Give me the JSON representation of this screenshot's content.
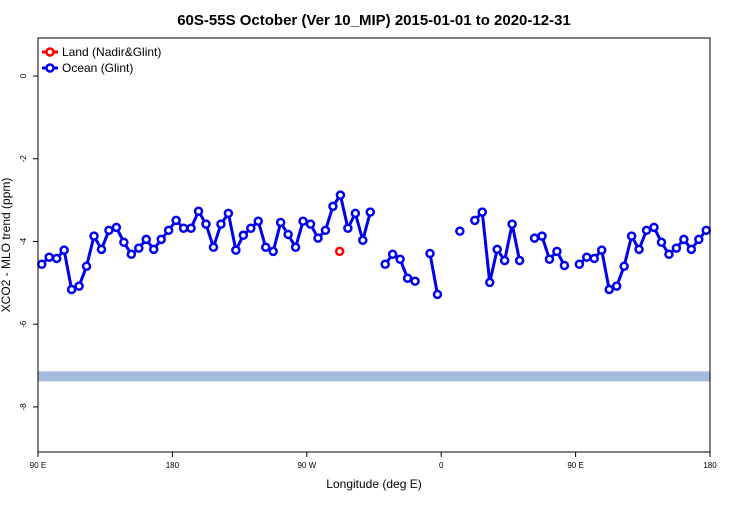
{
  "chart_data": {
    "type": "line",
    "title": "60S-55S October (Ver 10_MIP)   2015-01-01 to 2020-12-31",
    "xlabel": "Longitude (deg E)",
    "ylabel": "XCO2 - MLO trend (ppm)",
    "xlim": [
      90,
      540
    ],
    "ylim": [
      -9.09,
      0.92
    ],
    "xticks": [
      {
        "value": 90,
        "label": "90 E"
      },
      180,
      {
        "value": 270,
        "label": "90 W"
      },
      {
        "value": 360,
        "label": "0"
      },
      {
        "value": 450,
        "label": "90 E"
      },
      {
        "value": 540,
        "label": "180"
      }
    ],
    "yticks": [
      0,
      -2,
      -4,
      -6,
      -8
    ],
    "legend": "top-left",
    "reference_band": {
      "value": -7.26,
      "color": "#a6bcdf"
    },
    "series": [
      {
        "name": "Land (Nadir&Glint)",
        "color": "#ff0000",
        "x": [
          292
        ],
        "values": [
          -4.24
        ]
      },
      {
        "name": "Ocean (Glint)",
        "color": "#0000ee",
        "x": [
          92.5,
          97.5,
          102.5,
          107.5,
          112.5,
          117.5,
          122.5,
          127.5,
          132.5,
          137.5,
          142.5,
          147.5,
          152.5,
          157.5,
          162.5,
          167.5,
          172.5,
          177.5,
          182.5,
          187.5,
          192.5,
          197.5,
          202.5,
          207.5,
          212.5,
          217.5,
          222.5,
          227.5,
          232.5,
          237.5,
          242.5,
          247.5,
          252.5,
          257.5,
          262.5,
          267.5,
          272.5,
          277.5,
          282.5,
          287.5,
          292.5,
          297.5,
          302.5,
          307.5,
          312.5,
          317.5,
          322.5,
          327.5,
          332.5,
          337.5,
          342.5,
          347.5,
          352.5,
          357.5,
          362.5,
          367.5,
          372.5,
          377.5,
          382.5,
          387.5,
          392.5,
          397.5,
          402.5,
          407.5,
          412.5,
          417.5,
          422.5,
          427.5,
          432.5,
          437.5,
          442.5,
          447.5,
          452.5,
          457.5,
          462.5,
          467.5,
          472.5,
          477.5,
          482.5,
          487.5,
          492.5,
          497.5,
          502.5,
          507.5,
          512.5,
          517.5,
          522.5,
          527.5,
          532.5,
          537.5
        ],
        "values": [
          -4.55,
          -4.38,
          -4.41,
          -4.21,
          -5.16,
          -5.08,
          -4.6,
          -3.87,
          -4.19,
          -3.73,
          -3.66,
          -4.02,
          -4.31,
          -4.16,
          -3.95,
          -4.19,
          -3.95,
          -3.73,
          -3.49,
          -3.68,
          -3.68,
          -3.27,
          -3.58,
          -4.14,
          -3.58,
          -3.32,
          -4.21,
          -3.85,
          -3.68,
          -3.51,
          -4.14,
          -4.24,
          -3.54,
          -3.83,
          -4.14,
          -3.51,
          -3.58,
          -3.92,
          -3.73,
          -3.15,
          -2.88,
          -3.68,
          -3.32,
          -3.97,
          -3.29,
          null,
          -4.55,
          -4.31,
          -4.43,
          -4.89,
          -4.96,
          null,
          -4.29,
          -5.28,
          null,
          null,
          -3.75,
          null,
          -3.49,
          -3.29,
          -4.99,
          -4.19,
          -4.46,
          -3.58,
          -4.46,
          null,
          -3.92,
          -3.87,
          -4.43,
          -4.24,
          -4.58,
          null,
          -4.55,
          -4.38,
          -4.41,
          -4.21,
          -5.16,
          -5.08,
          -4.6,
          -3.87,
          -4.19,
          -3.73,
          -3.66,
          -4.02,
          -4.31,
          -4.16,
          -3.95,
          -4.19,
          -3.95,
          -3.73
        ]
      }
    ]
  }
}
